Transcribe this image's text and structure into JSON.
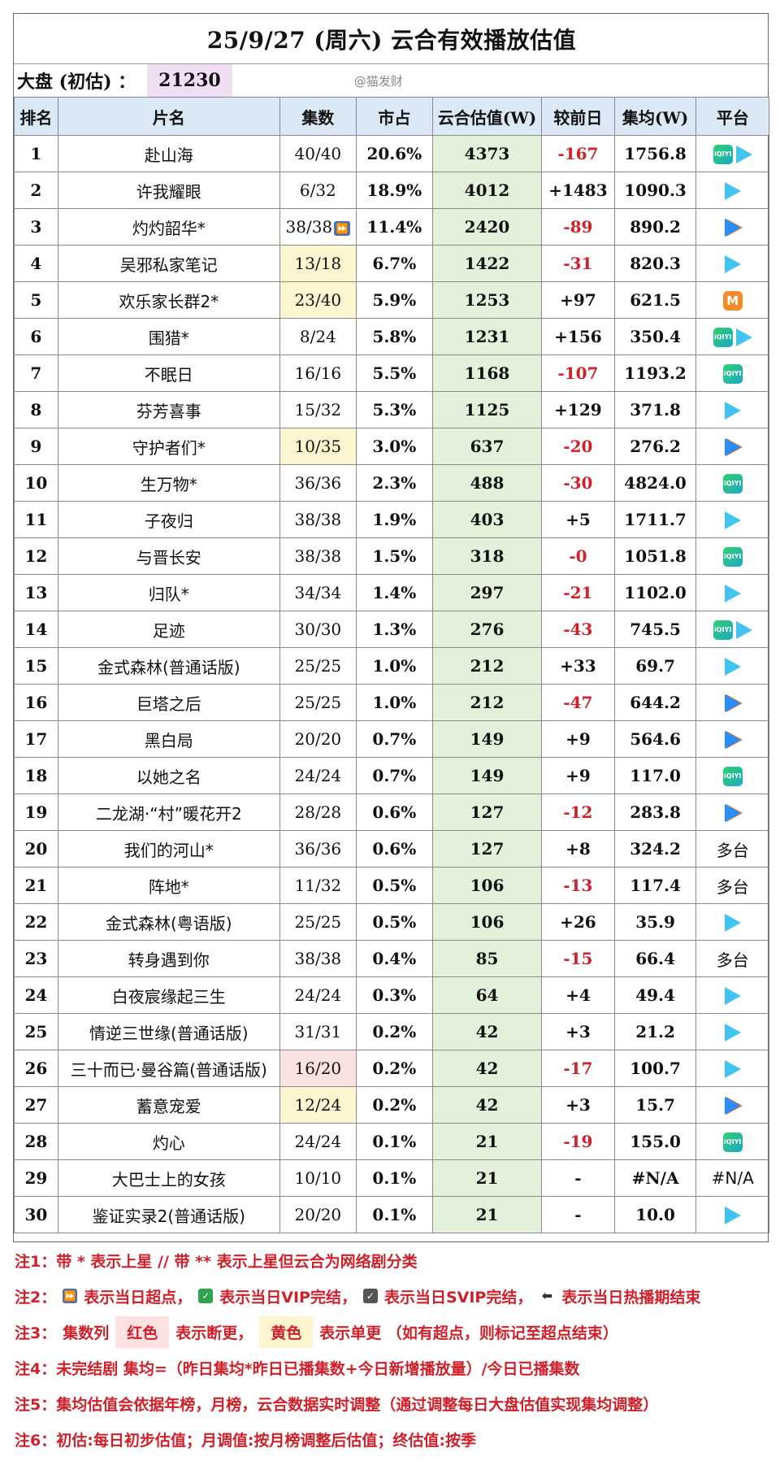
{
  "title": "25/9/27 (周六) 云合有效播放估值",
  "summary": {
    "label": "大盘 (初估) ：",
    "value": "21230",
    "watermark": "@猫发财"
  },
  "columns": [
    "排名",
    "片名",
    "集数",
    "市占",
    "云合估值(W)",
    "较前日",
    "集均(W)",
    "平台"
  ],
  "rows": [
    {
      "rank": "1",
      "title": "赴山海",
      "eps": "40/40",
      "share": "20.6%",
      "est": "4373",
      "chg": "-167",
      "avg": "1756.8",
      "plat": [
        "iqiyi",
        "tencent"
      ],
      "neg": true,
      "eps_hl": ""
    },
    {
      "rank": "2",
      "title": "许我耀眼",
      "eps": "6/32",
      "share": "18.9%",
      "est": "4012",
      "chg": "+1483",
      "avg": "1090.3",
      "plat": [
        "tencent"
      ],
      "neg": false,
      "eps_hl": ""
    },
    {
      "rank": "3",
      "title": "灼灼韶华*",
      "eps": "38/38",
      "share": "11.4%",
      "est": "2420",
      "chg": "-89",
      "avg": "890.2",
      "plat": [
        "youku"
      ],
      "neg": true,
      "eps_hl": "",
      "ff": true
    },
    {
      "rank": "4",
      "title": "吴邪私家笔记",
      "eps": "13/18",
      "share": "6.7%",
      "est": "1422",
      "chg": "-31",
      "avg": "820.3",
      "plat": [
        "tencent"
      ],
      "neg": true,
      "eps_hl": "yellow"
    },
    {
      "rank": "5",
      "title": "欢乐家长群2*",
      "eps": "23/40",
      "share": "5.9%",
      "est": "1253",
      "chg": "+97",
      "avg": "621.5",
      "plat": [
        "mango"
      ],
      "neg": false,
      "eps_hl": "yellow"
    },
    {
      "rank": "6",
      "title": "围猎*",
      "eps": "8/24",
      "share": "5.8%",
      "est": "1231",
      "chg": "+156",
      "avg": "350.4",
      "plat": [
        "iqiyi",
        "tencent"
      ],
      "neg": false,
      "eps_hl": ""
    },
    {
      "rank": "7",
      "title": "不眠日",
      "eps": "16/16",
      "share": "5.5%",
      "est": "1168",
      "chg": "-107",
      "avg": "1193.2",
      "plat": [
        "iqiyi"
      ],
      "neg": true,
      "eps_hl": ""
    },
    {
      "rank": "8",
      "title": "芬芳喜事",
      "eps": "15/32",
      "share": "5.3%",
      "est": "1125",
      "chg": "+129",
      "avg": "371.8",
      "plat": [
        "tencent"
      ],
      "neg": false,
      "eps_hl": ""
    },
    {
      "rank": "9",
      "title": "守护者们*",
      "eps": "10/35",
      "share": "3.0%",
      "est": "637",
      "chg": "-20",
      "avg": "276.2",
      "plat": [
        "youku"
      ],
      "neg": true,
      "eps_hl": "yellow"
    },
    {
      "rank": "10",
      "title": "生万物*",
      "eps": "36/36",
      "share": "2.3%",
      "est": "488",
      "chg": "-30",
      "avg": "4824.0",
      "plat": [
        "iqiyi"
      ],
      "neg": true,
      "eps_hl": ""
    },
    {
      "rank": "11",
      "title": "子夜归",
      "eps": "38/38",
      "share": "1.9%",
      "est": "403",
      "chg": "+5",
      "avg": "1711.7",
      "plat": [
        "tencent"
      ],
      "neg": false,
      "eps_hl": ""
    },
    {
      "rank": "12",
      "title": "与晋长安",
      "eps": "38/38",
      "share": "1.5%",
      "est": "318",
      "chg": "-0",
      "avg": "1051.8",
      "plat": [
        "iqiyi"
      ],
      "neg": true,
      "eps_hl": ""
    },
    {
      "rank": "13",
      "title": "归队*",
      "eps": "34/34",
      "share": "1.4%",
      "est": "297",
      "chg": "-21",
      "avg": "1102.0",
      "plat": [
        "tencent"
      ],
      "neg": true,
      "eps_hl": ""
    },
    {
      "rank": "14",
      "title": "足迹",
      "eps": "30/30",
      "share": "1.3%",
      "est": "276",
      "chg": "-43",
      "avg": "745.5",
      "plat": [
        "iqiyi",
        "tencent"
      ],
      "neg": true,
      "eps_hl": ""
    },
    {
      "rank": "15",
      "title": "金式森林(普通话版)",
      "eps": "25/25",
      "share": "1.0%",
      "est": "212",
      "chg": "+33",
      "avg": "69.7",
      "plat": [
        "tencent"
      ],
      "neg": false,
      "eps_hl": ""
    },
    {
      "rank": "16",
      "title": "巨塔之后",
      "eps": "25/25",
      "share": "1.0%",
      "est": "212",
      "chg": "-47",
      "avg": "644.2",
      "plat": [
        "youku"
      ],
      "neg": true,
      "eps_hl": ""
    },
    {
      "rank": "17",
      "title": "黑白局",
      "eps": "20/20",
      "share": "0.7%",
      "est": "149",
      "chg": "+9",
      "avg": "564.6",
      "plat": [
        "youku"
      ],
      "neg": false,
      "eps_hl": ""
    },
    {
      "rank": "18",
      "title": "以她之名",
      "eps": "24/24",
      "share": "0.7%",
      "est": "149",
      "chg": "+9",
      "avg": "117.0",
      "plat": [
        "iqiyi"
      ],
      "neg": false,
      "eps_hl": ""
    },
    {
      "rank": "19",
      "title": "二龙湖·“村”暖花开2",
      "eps": "28/28",
      "share": "0.6%",
      "est": "127",
      "chg": "-12",
      "avg": "283.8",
      "plat": [
        "youku"
      ],
      "neg": true,
      "eps_hl": ""
    },
    {
      "rank": "20",
      "title": "我们的河山*",
      "eps": "36/36",
      "share": "0.6%",
      "est": "127",
      "chg": "+8",
      "avg": "324.2",
      "plat_text": "多台",
      "neg": false,
      "eps_hl": ""
    },
    {
      "rank": "21",
      "title": "阵地*",
      "eps": "11/32",
      "share": "0.5%",
      "est": "106",
      "chg": "-13",
      "avg": "117.4",
      "plat_text": "多台",
      "neg": true,
      "eps_hl": ""
    },
    {
      "rank": "22",
      "title": "金式森林(粤语版)",
      "eps": "25/25",
      "share": "0.5%",
      "est": "106",
      "chg": "+26",
      "avg": "35.9",
      "plat": [
        "tencent"
      ],
      "neg": false,
      "eps_hl": ""
    },
    {
      "rank": "23",
      "title": "转身遇到你",
      "eps": "38/38",
      "share": "0.4%",
      "est": "85",
      "chg": "-15",
      "avg": "66.4",
      "plat_text": "多台",
      "neg": true,
      "eps_hl": ""
    },
    {
      "rank": "24",
      "title": "白夜宸缘起三生",
      "eps": "24/24",
      "share": "0.3%",
      "est": "64",
      "chg": "+4",
      "avg": "49.4",
      "plat": [
        "tencent"
      ],
      "neg": false,
      "eps_hl": ""
    },
    {
      "rank": "25",
      "title": "情逆三世缘(普通话版)",
      "eps": "31/31",
      "share": "0.2%",
      "est": "42",
      "chg": "+3",
      "avg": "21.2",
      "plat": [
        "tencent"
      ],
      "neg": false,
      "eps_hl": ""
    },
    {
      "rank": "26",
      "title": "三十而已·曼谷篇(普通话版)",
      "eps": "16/20",
      "share": "0.2%",
      "est": "42",
      "chg": "-17",
      "avg": "100.7",
      "plat": [
        "tencent"
      ],
      "neg": true,
      "eps_hl": "red"
    },
    {
      "rank": "27",
      "title": "蓄意宠爱",
      "eps": "12/24",
      "share": "0.2%",
      "est": "42",
      "chg": "+3",
      "avg": "15.7",
      "plat": [
        "youku"
      ],
      "neg": false,
      "eps_hl": "yellow"
    },
    {
      "rank": "28",
      "title": "灼心",
      "eps": "24/24",
      "share": "0.1%",
      "est": "21",
      "chg": "-19",
      "avg": "155.0",
      "plat": [
        "iqiyi"
      ],
      "neg": true,
      "eps_hl": ""
    },
    {
      "rank": "29",
      "title": "大巴士上的女孩",
      "eps": "10/10",
      "share": "0.1%",
      "est": "21",
      "chg": "-",
      "avg": "#N/A",
      "plat_text": "#N/A",
      "neg": false,
      "eps_hl": ""
    },
    {
      "rank": "30",
      "title": "鉴证实录2(普通话版)",
      "eps": "20/20",
      "share": "0.1%",
      "est": "21",
      "chg": "-",
      "avg": "10.0",
      "plat": [
        "tencent"
      ],
      "neg": false,
      "eps_hl": ""
    }
  ],
  "notes": {
    "n1": "注1：带 * 表示上星 // 带 ** 表示上星但云合为网络剧分类",
    "n2_prefix": "注2：",
    "n2_a": "表示当日超点，",
    "n2_b": "表示当日VIP完结，",
    "n2_c": "表示当日SVIP完结，",
    "n2_d": "表示当日热播期结束",
    "n3_prefix": "注3：",
    "n3_col": "集数列",
    "n3_red": "红色",
    "n3_mid": "表示断更，",
    "n3_yellow": "黄色",
    "n3_end": "表示单更 （如有超点，则标记至超点结束）",
    "n4": "注4：未完结剧 集均=（昨日集均*昨日已播集数+今日新增播放量）/今日已播集数",
    "n5": "注5：集均估值会依据年榜，月榜，云合数据实时调整（通过调整每日大盘估值实现集均调整）",
    "n6": "注6：初估:每日初步估值；月调值:按月榜调整后估值；终估值:按季"
  },
  "icons": {
    "iqiyi": "iqiyi-icon",
    "tencent": "tencent-video-icon",
    "youku": "youku-icon",
    "mango": "mango-tv-icon"
  },
  "colors": {
    "negative": "#d0202a",
    "header": "#dbe8f5",
    "estimate": "#e3f1da",
    "yellow": "#fdf5cf",
    "red": "#fbe2e2",
    "summary": "#f0dff3"
  }
}
